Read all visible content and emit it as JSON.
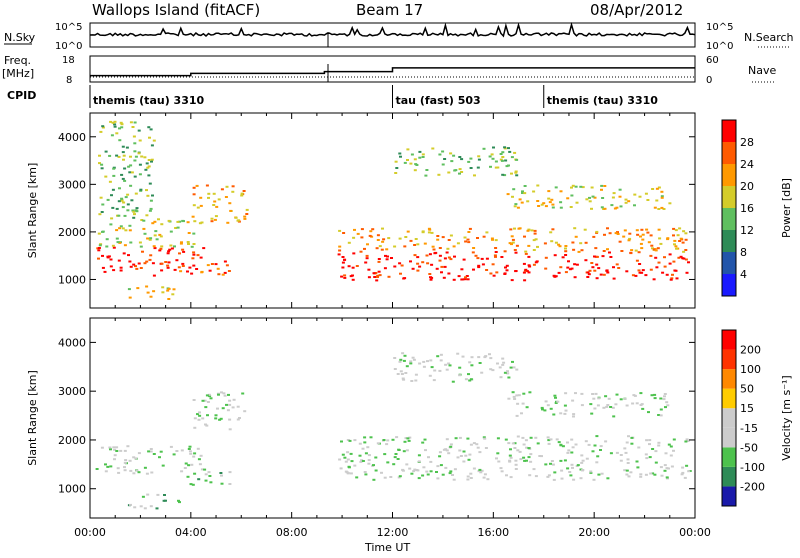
{
  "header": {
    "title": "Wallops Island (fitACF)",
    "beam": "Beam 17",
    "date": "08/Apr/2012"
  },
  "status_panel": {
    "nsky_label": "N.Sky",
    "nsearch_label": "N.Search",
    "noise_top": "10^5",
    "noise_bottom": "10^0",
    "freq_label": "Freq.",
    "freq_unit": "[MHz]",
    "freq_top": "18",
    "freq_bottom": "8",
    "nave_label": "Nave",
    "nave_top": "60",
    "nave_bottom": "0",
    "cpid_label": "CPID",
    "cpid_segments": [
      {
        "label": "themis (tau) 3310",
        "start_hour": 0
      },
      {
        "label": "tau (fast) 503",
        "start_hour": 12
      },
      {
        "label": "themis (tau) 3310",
        "start_hour": 18
      }
    ],
    "freq_steps": [
      {
        "hour": 0,
        "mhz": 10
      },
      {
        "hour": 4,
        "mhz": 11
      },
      {
        "hour": 9.3,
        "mhz": 11.8
      },
      {
        "hour": 12,
        "mhz": 13.5
      }
    ]
  },
  "chart_data": [
    {
      "type": "heatmap",
      "name": "power",
      "ylabel": "Slant Range [km]",
      "yticks": [
        "1000",
        "2000",
        "3000",
        "4000"
      ],
      "ylim": [
        400,
        4500
      ],
      "xlim": [
        0,
        24
      ],
      "colorbar_label": "Power [dB]",
      "colorbar_ticks": [
        "4",
        "8",
        "12",
        "16",
        "20",
        "24",
        "28"
      ],
      "colorbar_colors": [
        "#1a1aff",
        "#2255aa",
        "#2e8b57",
        "#5fbf5f",
        "#d4cc2a",
        "#ff9900",
        "#ff5a00",
        "#ff0000"
      ],
      "regions": [
        {
          "x0": 0.2,
          "x1": 4.5,
          "r0": 1100,
          "r1": 1700,
          "level": 7
        },
        {
          "x0": 0.3,
          "x1": 4.5,
          "r0": 1700,
          "r1": 2300,
          "level": 4
        },
        {
          "x0": 0.3,
          "x1": 2.5,
          "r0": 2300,
          "r1": 4400,
          "level": 3
        },
        {
          "x0": 4.0,
          "x1": 6.2,
          "r0": 2200,
          "r1": 3000,
          "level": 5
        },
        {
          "x0": 1.5,
          "x1": 3.5,
          "r0": 600,
          "r1": 900,
          "level": 4
        },
        {
          "x0": 3.5,
          "x1": 5.5,
          "r0": 1100,
          "r1": 1400,
          "level": 6
        },
        {
          "x0": 9.8,
          "x1": 23.8,
          "r0": 1000,
          "r1": 1600,
          "level": 7
        },
        {
          "x0": 9.8,
          "x1": 23.8,
          "r0": 1600,
          "r1": 2100,
          "level": 5
        },
        {
          "x0": 12.0,
          "x1": 17.0,
          "r0": 3200,
          "r1": 3800,
          "level": 3
        },
        {
          "x0": 16.5,
          "x1": 23.0,
          "r0": 2500,
          "r1": 3000,
          "level": 4
        }
      ]
    },
    {
      "type": "heatmap",
      "name": "velocity",
      "ylabel": "Slant Range [km]",
      "yticks": [
        "1000",
        "2000",
        "3000",
        "4000"
      ],
      "ylim": [
        400,
        4500
      ],
      "xlim": [
        0,
        24
      ],
      "xlabel": "Time UT",
      "xticks": [
        "00:00",
        "04:00",
        "08:00",
        "12:00",
        "16:00",
        "20:00",
        "00:00"
      ],
      "colorbar_label": "Velocity [m s⁻¹]",
      "colorbar_ticks": [
        "200",
        "100",
        "50",
        "15",
        "-15",
        "-50",
        "-100",
        "-200"
      ],
      "colorbar_colors": [
        "#1a1aaa",
        "#2e8b57",
        "#4dc24d",
        "#cccccc",
        "#cccccc",
        "#ffcc00",
        "#ff8800",
        "#ff3300",
        "#ff0000"
      ],
      "regions": [
        {
          "x0": 0.2,
          "x1": 4.5,
          "r0": 1300,
          "r1": 1900,
          "level": 3
        },
        {
          "x0": 4.0,
          "x1": 6.2,
          "r0": 2200,
          "r1": 3000,
          "level": 3
        },
        {
          "x0": 1.5,
          "x1": 3.5,
          "r0": 600,
          "r1": 900,
          "level": 2
        },
        {
          "x0": 3.5,
          "x1": 5.5,
          "r0": 1100,
          "r1": 1400,
          "level": 2
        },
        {
          "x0": 9.8,
          "x1": 23.8,
          "r0": 1200,
          "r1": 2100,
          "level": 3
        },
        {
          "x0": 12.0,
          "x1": 17.0,
          "r0": 3200,
          "r1": 3800,
          "level": 3
        },
        {
          "x0": 16.5,
          "x1": 23.0,
          "r0": 2500,
          "r1": 3000,
          "level": 3
        }
      ]
    }
  ]
}
